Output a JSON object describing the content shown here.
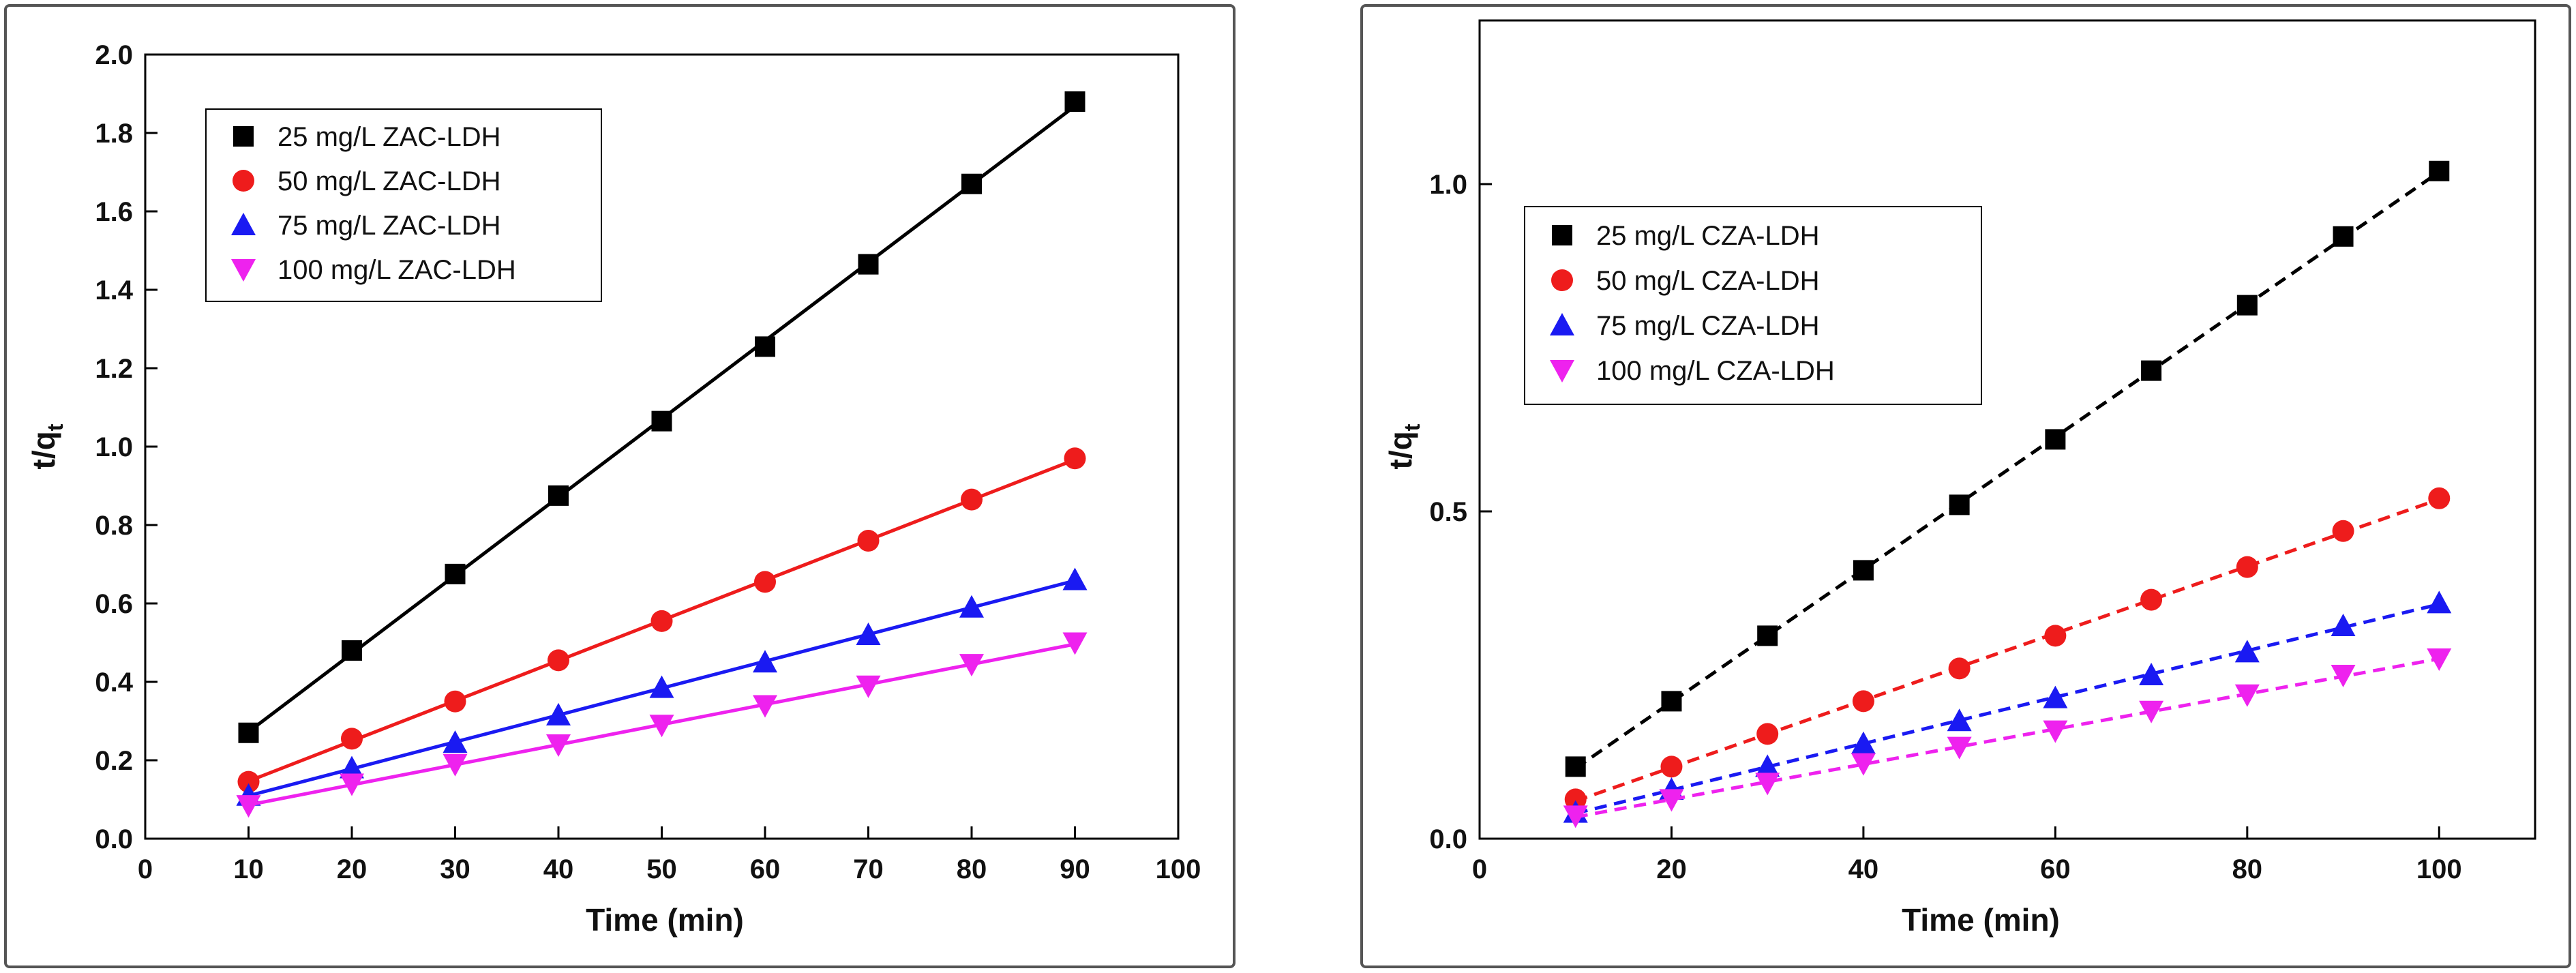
{
  "colors": {
    "s25": "#000000",
    "s50": "#ee1c1c",
    "s75": "#1a1af2",
    "s100": "#ee22ee",
    "panel_border": "#555555",
    "axis": "#000000"
  },
  "chart_data": [
    {
      "type": "scatter",
      "fit": "solid",
      "xlabel": "Time (min)",
      "ylabel": "t/qt",
      "xlim": [
        0,
        100
      ],
      "ylim": [
        0,
        2.0
      ],
      "xticks": [
        "0",
        "10",
        "20",
        "30",
        "40",
        "50",
        "60",
        "70",
        "80",
        "90",
        "100"
      ],
      "yticks": [
        "0.0",
        "0.2",
        "0.4",
        "0.6",
        "0.8",
        "1.0",
        "1.2",
        "1.4",
        "1.6",
        "1.8",
        "2.0"
      ],
      "legend_position": "top-left",
      "series": [
        {
          "name": "25 mg/L ZAC-LDH",
          "marker": "square",
          "color": "#000000",
          "x": [
            10,
            20,
            30,
            40,
            50,
            60,
            70,
            80,
            90
          ],
          "values": [
            0.27,
            0.48,
            0.675,
            0.875,
            1.065,
            1.255,
            1.465,
            1.67,
            1.88
          ]
        },
        {
          "name": "50 mg/L ZAC-LDH",
          "marker": "circle",
          "color": "#ee1c1c",
          "x": [
            10,
            20,
            30,
            40,
            50,
            60,
            70,
            80,
            90
          ],
          "values": [
            0.145,
            0.255,
            0.35,
            0.455,
            0.555,
            0.655,
            0.76,
            0.865,
            0.97
          ]
        },
        {
          "name": "75 mg/L ZAC-LDH",
          "marker": "triangle-up",
          "color": "#1a1af2",
          "x": [
            10,
            20,
            30,
            40,
            50,
            60,
            70,
            80,
            90
          ],
          "values": [
            0.11,
            0.18,
            0.245,
            0.315,
            0.385,
            0.45,
            0.52,
            0.59,
            0.66
          ]
        },
        {
          "name": "100 mg/L ZAC-LDH",
          "marker": "triangle-down",
          "color": "#ee22ee",
          "x": [
            10,
            20,
            30,
            40,
            50,
            60,
            70,
            80,
            90
          ],
          "values": [
            0.085,
            0.14,
            0.19,
            0.24,
            0.29,
            0.34,
            0.39,
            0.445,
            0.5
          ]
        }
      ]
    },
    {
      "type": "scatter",
      "fit": "dashed",
      "xlabel": "Time (min)",
      "ylabel": "t/qt",
      "xlim": [
        0,
        110
      ],
      "ylim": [
        0,
        1.25
      ],
      "xticks": [
        "0",
        "20",
        "40",
        "60",
        "80",
        "100"
      ],
      "yticks": [
        "0.0",
        "0.5",
        "1.0"
      ],
      "legend_position": "top-left",
      "series": [
        {
          "name": "25 mg/L CZA-LDH",
          "marker": "square",
          "color": "#000000",
          "x": [
            10,
            20,
            30,
            40,
            50,
            60,
            70,
            80,
            90,
            100
          ],
          "values": [
            0.11,
            0.21,
            0.31,
            0.41,
            0.51,
            0.61,
            0.715,
            0.815,
            0.92,
            1.02
          ]
        },
        {
          "name": "50 mg/L CZA-LDH",
          "marker": "circle",
          "color": "#ee1c1c",
          "x": [
            10,
            20,
            30,
            40,
            50,
            60,
            70,
            80,
            90,
            100
          ],
          "values": [
            0.06,
            0.11,
            0.16,
            0.21,
            0.26,
            0.31,
            0.365,
            0.415,
            0.47,
            0.52
          ]
        },
        {
          "name": "75 mg/L CZA-LDH",
          "marker": "triangle-up",
          "color": "#1a1af2",
          "x": [
            10,
            20,
            30,
            40,
            50,
            60,
            70,
            80,
            90,
            100
          ],
          "values": [
            0.04,
            0.075,
            0.11,
            0.145,
            0.18,
            0.215,
            0.25,
            0.285,
            0.325,
            0.36
          ]
        },
        {
          "name": "100 mg/L CZA-LDH",
          "marker": "triangle-down",
          "color": "#ee22ee",
          "x": [
            10,
            20,
            30,
            40,
            50,
            60,
            70,
            80,
            90,
            100
          ],
          "values": [
            0.035,
            0.06,
            0.085,
            0.115,
            0.14,
            0.165,
            0.195,
            0.22,
            0.25,
            0.275
          ]
        }
      ]
    }
  ]
}
